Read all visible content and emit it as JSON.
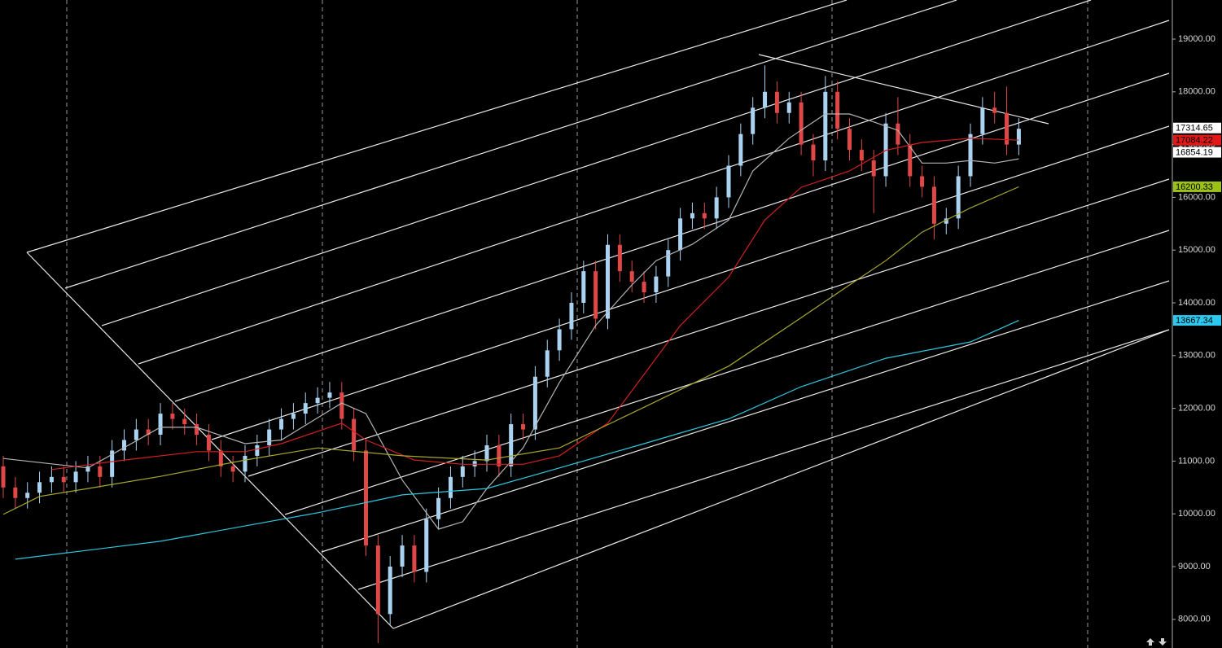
{
  "chart_data": {
    "type": "candlestick",
    "up_color": "#a9d3f0",
    "down_color": "#e04848",
    "open": [
      10900,
      10500,
      10300,
      10400,
      10600,
      10700,
      10600,
      10800,
      10900,
      10700,
      11200,
      11400,
      11600,
      11500,
      11900,
      11800,
      11700,
      11500,
      11200,
      10900,
      10800,
      11100,
      11300,
      11600,
      11800,
      11900,
      12100,
      12200,
      12300,
      11800,
      11200,
      9400,
      8100,
      9000,
      9400,
      8900,
      9900,
      10300,
      10700,
      10900,
      11000,
      11300,
      10900,
      11700,
      11600,
      12600,
      13100,
      13500,
      14000,
      14600,
      13700,
      15100,
      14600,
      14400,
      14200,
      14500,
      15000,
      15600,
      15700,
      15600,
      16000,
      16600,
      17200,
      17700,
      18000,
      17600,
      17800,
      17000,
      16700,
      18000,
      17300,
      16900,
      16700,
      16400,
      17400,
      17000,
      16400,
      16200,
      15500,
      15600,
      16400,
      17200,
      17700,
      17600,
      17000
    ],
    "high": [
      11100,
      10700,
      10600,
      10800,
      10900,
      10900,
      11000,
      11100,
      11100,
      11400,
      11600,
      11800,
      11800,
      12100,
      12100,
      12000,
      11900,
      11700,
      11400,
      11100,
      11300,
      11500,
      11800,
      12000,
      12100,
      12300,
      12400,
      12500,
      12500,
      12000,
      11400,
      9600,
      9200,
      9600,
      9600,
      10100,
      10500,
      10900,
      11100,
      11200,
      11500,
      11500,
      11900,
      11900,
      12800,
      13300,
      13700,
      14200,
      14800,
      14800,
      15300,
      15300,
      14800,
      14600,
      14700,
      15200,
      15800,
      15900,
      15900,
      16200,
      16800,
      17400,
      17900,
      18500,
      18200,
      18000,
      18000,
      17200,
      18300,
      18200,
      17500,
      17100,
      16900,
      17600,
      17900,
      17200,
      16600,
      16400,
      15800,
      16600,
      17400,
      17900,
      18000,
      18100,
      17500
    ],
    "low": [
      10300,
      10100,
      10100,
      10200,
      10400,
      10400,
      10400,
      10600,
      10500,
      10500,
      11000,
      11200,
      11300,
      11300,
      11600,
      11500,
      11300,
      11000,
      10700,
      10600,
      10600,
      10900,
      11100,
      11400,
      11600,
      11700,
      11900,
      12000,
      11600,
      11000,
      9200,
      7550,
      7900,
      8800,
      8700,
      8700,
      9700,
      10100,
      10500,
      10700,
      10800,
      10700,
      10700,
      11400,
      11400,
      12400,
      12900,
      13300,
      13800,
      13500,
      13500,
      14400,
      14200,
      14000,
      14000,
      14300,
      14800,
      15400,
      15400,
      15400,
      15800,
      16400,
      17000,
      17500,
      17400,
      17400,
      16800,
      16400,
      16500,
      17100,
      16700,
      16500,
      15700,
      16200,
      16800,
      16200,
      16000,
      15200,
      15300,
      15400,
      16200,
      17000,
      17400,
      16800,
      16800
    ],
    "close": [
      10500,
      10300,
      10400,
      10600,
      10700,
      10600,
      10800,
      10900,
      10700,
      11200,
      11400,
      11600,
      11500,
      11900,
      11800,
      11700,
      11500,
      11200,
      10900,
      10800,
      11100,
      11300,
      11600,
      11800,
      11900,
      12100,
      12200,
      12300,
      11800,
      11200,
      9400,
      8100,
      9000,
      9400,
      8900,
      9900,
      10300,
      10700,
      10900,
      11000,
      11300,
      10900,
      11700,
      11600,
      12600,
      13100,
      13500,
      14000,
      14600,
      13700,
      15100,
      14600,
      14400,
      14200,
      14500,
      15000,
      15600,
      15700,
      15600,
      16000,
      16600,
      17200,
      17700,
      18000,
      17600,
      17800,
      17000,
      16700,
      18000,
      17300,
      16900,
      16700,
      16400,
      17400,
      17000,
      16400,
      16200,
      15500,
      15600,
      16400,
      17200,
      17700,
      17600,
      17000,
      17300
    ],
    "series": [
      {
        "color": "#b4b4b4",
        "x": [
          0,
          7,
          13,
          16,
          20,
          23,
          28,
          30,
          33,
          36,
          38,
          40,
          43,
          46,
          49,
          52,
          54,
          57,
          60,
          62,
          65,
          68,
          70,
          72,
          74,
          76,
          78,
          80,
          82,
          84
        ],
        "values": [
          11050,
          10870,
          11640,
          11640,
          11330,
          11400,
          12100,
          11900,
          10640,
          9710,
          9850,
          10480,
          11250,
          12490,
          13570,
          14340,
          14800,
          15110,
          15570,
          16500,
          17120,
          17580,
          17580,
          17430,
          17270,
          16650,
          16650,
          16700,
          16650,
          16730
        ]
      },
      {
        "color": "#d22020",
        "x": [
          4,
          10,
          16,
          20,
          23,
          28,
          30,
          34,
          38,
          43,
          46,
          50,
          53,
          56,
          60,
          63,
          66,
          70,
          73,
          76,
          80,
          84
        ],
        "values": [
          10840,
          11020,
          11180,
          11180,
          11330,
          11720,
          11400,
          11020,
          10940,
          10940,
          11100,
          11720,
          12640,
          13570,
          14490,
          15570,
          16190,
          16500,
          16890,
          17040,
          17120,
          17084
        ]
      },
      {
        "color": "#a8a830",
        "x": [
          0,
          3,
          7,
          13,
          20,
          26,
          33,
          40,
          46,
          53,
          60,
          66,
          70,
          73,
          76,
          80,
          84
        ],
        "values": [
          9990,
          10330,
          10480,
          10710,
          11020,
          11250,
          11100,
          11020,
          11250,
          12020,
          12800,
          13720,
          14340,
          14800,
          15340,
          15800,
          16200
        ]
      },
      {
        "color": "#30c8e0",
        "x": [
          1,
          13,
          26,
          33,
          40,
          46,
          53,
          60,
          66,
          73,
          80,
          84
        ],
        "values": [
          9140,
          9480,
          10020,
          10360,
          10480,
          10870,
          11330,
          11800,
          12410,
          12950,
          13260,
          13667
        ]
      }
    ],
    "ylim": [
      7457,
      19741
    ],
    "yticks": [
      {
        "value": 8000,
        "label": "8000.00"
      },
      {
        "value": 9000,
        "label": "9000.00"
      },
      {
        "value": 10000,
        "label": "10000.00"
      },
      {
        "value": 11000,
        "label": "11000.00"
      },
      {
        "value": 12000,
        "label": "12000.00"
      },
      {
        "value": 13000,
        "label": "13000.00"
      },
      {
        "value": 14000,
        "label": "14000.00"
      },
      {
        "value": 15000,
        "label": "15000.00"
      },
      {
        "value": 16000,
        "label": "16000.00"
      },
      {
        "value": 17000,
        "label": "17000.00"
      },
      {
        "value": 18000,
        "label": "18000.00"
      },
      {
        "value": 19000,
        "label": "19000.00"
      }
    ],
    "price_tags": [
      {
        "value": 17314.65,
        "color": "#ffffff"
      },
      {
        "value": 17084.22,
        "color": "#e01818"
      },
      {
        "value": 16854.19,
        "color": "#ffffff"
      },
      {
        "value": 16200.33,
        "color": "#9cc21a"
      },
      {
        "value": 13667.34,
        "color": "#2cc8f0"
      }
    ]
  }
}
